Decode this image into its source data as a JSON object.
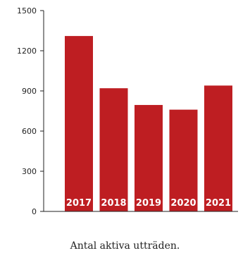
{
  "chart_data": {
    "type": "bar",
    "categories": [
      "2017",
      "2018",
      "2019",
      "2020",
      "2021"
    ],
    "values": [
      1310,
      920,
      795,
      760,
      940
    ],
    "ylim": [
      0,
      1500
    ],
    "yticks": [
      0,
      300,
      600,
      900,
      1200,
      1500
    ],
    "xlabel": "",
    "ylabel": "",
    "grid": false,
    "category_labels_inside_bars": true,
    "bar_color": "#be1e22",
    "axis_color": "#222222"
  },
  "caption": "Antal aktiva utträden."
}
